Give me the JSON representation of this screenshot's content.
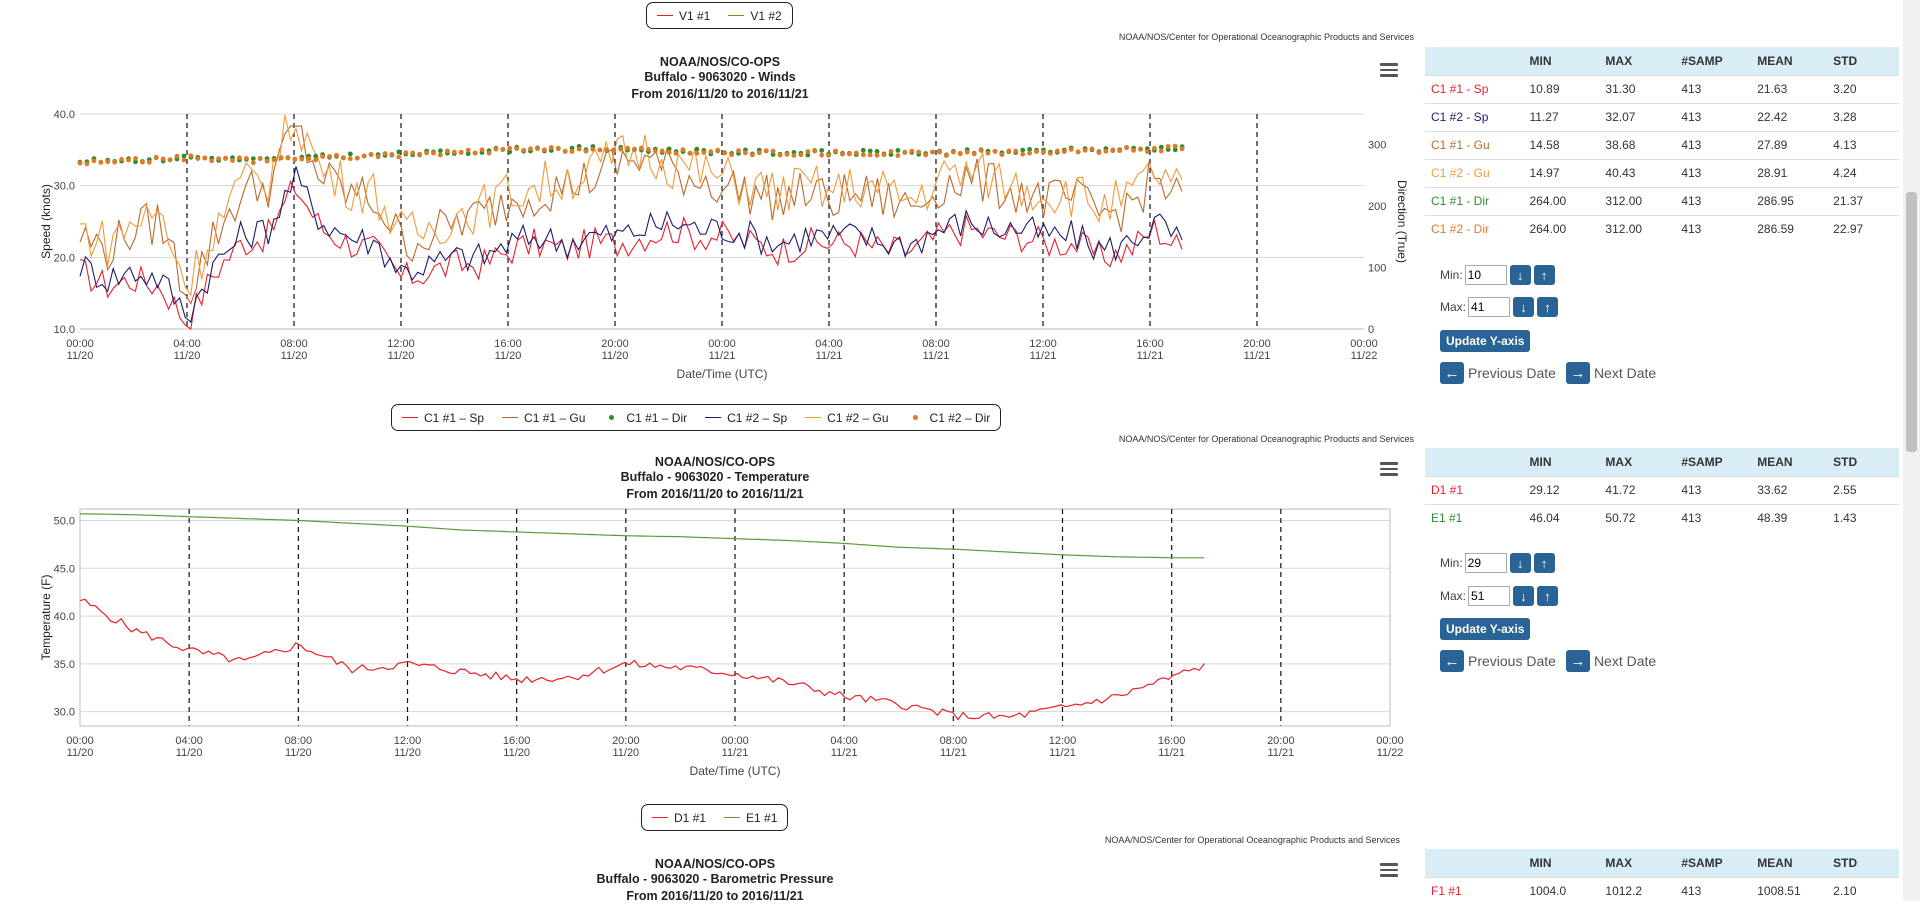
{
  "colors": {
    "red": "#e8202c",
    "navy": "#1f1b6b",
    "brown": "#b86a2d",
    "orange": "#f29a3b",
    "green": "#2e8b2e",
    "olive": "#5f9a3a",
    "dir_orange": "#e07b25",
    "btn": "#2a6496"
  },
  "top_legend": {
    "items": [
      "V1 #1",
      "V1 #2"
    ]
  },
  "credit": "NOAA/NOS/Center for Operational Oceanographic Products and Services",
  "x_axis": {
    "ticks": [
      {
        "t": "00:00",
        "d": "11/20"
      },
      {
        "t": "04:00",
        "d": "11/20"
      },
      {
        "t": "08:00",
        "d": "11/20"
      },
      {
        "t": "12:00",
        "d": "11/20"
      },
      {
        "t": "16:00",
        "d": "11/20"
      },
      {
        "t": "20:00",
        "d": "11/20"
      },
      {
        "t": "00:00",
        "d": "11/21"
      },
      {
        "t": "04:00",
        "d": "11/21"
      },
      {
        "t": "08:00",
        "d": "11/21"
      },
      {
        "t": "12:00",
        "d": "11/21"
      },
      {
        "t": "16:00",
        "d": "11/21"
      },
      {
        "t": "20:00",
        "d": "11/21"
      },
      {
        "t": "00:00",
        "d": "11/22"
      }
    ],
    "label": "Date/Time (UTC)"
  },
  "winds": {
    "title1": "NOAA/NOS/CO-OPS",
    "title2": "Buffalo - 9063020 - Winds",
    "title3": "From 2016/11/20 to 2016/11/21",
    "ylabel": "Speed (knots)",
    "y2label": "Direction (True)",
    "yticks": [
      "10.0",
      "20.0",
      "30.0",
      "40.0"
    ],
    "y2ticks": [
      "0",
      "100",
      "200",
      "300"
    ],
    "legend": [
      {
        "label": "C1 #1 – Sp",
        "sym": "line",
        "color": "#e8202c"
      },
      {
        "label": "C1 #1 – Gu",
        "sym": "line",
        "color": "#b86a2d"
      },
      {
        "label": "C1 #1 – Dir",
        "sym": "dot",
        "color": "#2e8b2e"
      },
      {
        "label": "C1 #2 – Sp",
        "sym": "line",
        "color": "#1f1b6b"
      },
      {
        "label": "C1 #2 – Gu",
        "sym": "line",
        "color": "#f29a3b"
      },
      {
        "label": "C1 #2 – Dir",
        "sym": "dot",
        "color": "#e07b25"
      }
    ],
    "stats": {
      "headers": [
        "",
        "MIN",
        "MAX",
        "#SAMP",
        "MEAN",
        "STD"
      ],
      "rows": [
        {
          "name": "C1 #1 - Sp",
          "color": "#e8202c",
          "vals": [
            "10.89",
            "31.30",
            "413",
            "21.63",
            "3.20"
          ]
        },
        {
          "name": "C1 #2 - Sp",
          "color": "#1f1b6b",
          "vals": [
            "11.27",
            "32.07",
            "413",
            "22.42",
            "3.28"
          ]
        },
        {
          "name": "C1 #1 - Gu",
          "color": "#b86a2d",
          "vals": [
            "14.58",
            "38.68",
            "413",
            "27.89",
            "4.13"
          ]
        },
        {
          "name": "C1 #2 - Gu",
          "color": "#f29a3b",
          "vals": [
            "14.97",
            "40.43",
            "413",
            "28.91",
            "4.24"
          ]
        },
        {
          "name": "C1 #1 - Dir",
          "color": "#2e8b2e",
          "vals": [
            "264.00",
            "312.00",
            "413",
            "286.95",
            "21.37"
          ]
        },
        {
          "name": "C1 #2 - Dir",
          "color": "#e07b25",
          "vals": [
            "264.00",
            "312.00",
            "413",
            "286.59",
            "22.97"
          ]
        }
      ]
    },
    "min_label": "Min:",
    "min_value": "10",
    "max_label": "Max:",
    "max_value": "41"
  },
  "temp": {
    "title1": "NOAA/NOS/CO-OPS",
    "title2": "Buffalo - 9063020 - Temperature",
    "title3": "From 2016/11/20 to 2016/11/21",
    "ylabel": "Temperature (F)",
    "yticks": [
      "30.0",
      "35.0",
      "40.0",
      "45.0",
      "50.0"
    ],
    "legend": [
      {
        "label": "D1 #1",
        "sym": "line",
        "color": "#e8202c"
      },
      {
        "label": "E1 #1",
        "sym": "line",
        "color": "#5f9a3a"
      }
    ],
    "stats": {
      "headers": [
        "",
        "MIN",
        "MAX",
        "#SAMP",
        "MEAN",
        "STD"
      ],
      "rows": [
        {
          "name": "D1 #1",
          "color": "#e8202c",
          "vals": [
            "29.12",
            "41.72",
            "413",
            "33.62",
            "2.55"
          ]
        },
        {
          "name": "E1 #1",
          "color": "#2e8b2e",
          "vals": [
            "46.04",
            "50.72",
            "413",
            "48.39",
            "1.43"
          ]
        }
      ]
    },
    "min_label": "Min:",
    "min_value": "29",
    "max_label": "Max:",
    "max_value": "51"
  },
  "pressure": {
    "title1": "NOAA/NOS/CO-OPS",
    "title2": "Buffalo - 9063020 - Barometric Pressure",
    "title3": "From 2016/11/20 to 2016/11/21",
    "stats": {
      "headers": [
        "",
        "MIN",
        "MAX",
        "#SAMP",
        "MEAN",
        "STD"
      ],
      "rows": [
        {
          "name": "F1 #1",
          "color": "#e8202c",
          "vals": [
            "1004.0",
            "1012.2",
            "413",
            "1008.51",
            "2.10"
          ]
        }
      ]
    }
  },
  "update_label": "Update Y-axis",
  "prev_label": "Previous Date",
  "next_label": "Next Date",
  "chart_data": [
    {
      "type": "line",
      "title": "Buffalo - 9063020 - Winds",
      "xlabel": "Date/Time (UTC)",
      "ylabel": "Speed (knots)",
      "y2label": "Direction (True)",
      "x_range": [
        "2016-11-20 00:00",
        "2016-11-22 00:00"
      ],
      "ylim": [
        10,
        40
      ],
      "y2lim": [
        0,
        350
      ],
      "x_hours": [
        0,
        1,
        2,
        3,
        4,
        5,
        6,
        7,
        8,
        9,
        10,
        11,
        12,
        13,
        14,
        15,
        16,
        17,
        18,
        19,
        20,
        21,
        22,
        23,
        24,
        25,
        26,
        27,
        28,
        29,
        30,
        31,
        32,
        33,
        34,
        35,
        36,
        37,
        38,
        39,
        40,
        41
      ],
      "series": [
        {
          "name": "C1 #1 – Sp",
          "axis": "y",
          "values": [
            18,
            16,
            17,
            16,
            11,
            18,
            22,
            23,
            30,
            24,
            22,
            21,
            17,
            18,
            19,
            19,
            21,
            22,
            21,
            22,
            22,
            23,
            24,
            23,
            23,
            22,
            21,
            22,
            22,
            22,
            21,
            21,
            23,
            24,
            23,
            23,
            22,
            22,
            20,
            21,
            24,
            21
          ]
        },
        {
          "name": "C1 #2 – Sp",
          "axis": "y",
          "values": [
            19,
            17,
            18,
            17,
            12,
            19,
            23,
            24,
            31,
            25,
            23,
            22,
            18,
            19,
            20,
            20,
            22,
            23,
            22,
            23,
            23,
            24,
            25,
            24,
            24,
            23,
            22,
            23,
            23,
            23,
            22,
            22,
            24,
            25,
            24,
            24,
            23,
            23,
            21,
            22,
            25,
            22
          ]
        },
        {
          "name": "C1 #1 – Gu",
          "axis": "y",
          "values": [
            23,
            21,
            24,
            25,
            15,
            23,
            29,
            30,
            38,
            31,
            29,
            28,
            22,
            23,
            25,
            26,
            28,
            29,
            30,
            31,
            33,
            34,
            32,
            31,
            30,
            29,
            28,
            29,
            28,
            29,
            28,
            27,
            30,
            31,
            30,
            29,
            28,
            28,
            26,
            27,
            31,
            28
          ]
        },
        {
          "name": "C1 #2 – Gu",
          "axis": "y",
          "values": [
            24,
            22,
            25,
            26,
            16,
            24,
            30,
            31,
            40,
            32,
            30,
            29,
            23,
            24,
            26,
            27,
            29,
            30,
            31,
            32,
            34,
            35,
            33,
            32,
            31,
            30,
            29,
            30,
            29,
            30,
            29,
            28,
            31,
            32,
            31,
            30,
            29,
            29,
            27,
            28,
            32,
            29
          ]
        },
        {
          "name": "C1 #1 – Dir",
          "axis": "y2",
          "values": [
            272,
            275,
            276,
            276,
            280,
            278,
            276,
            275,
            278,
            280,
            282,
            282,
            285,
            286,
            288,
            290,
            292,
            293,
            293,
            294,
            292,
            292,
            290,
            290,
            288,
            288,
            287,
            287,
            287,
            287,
            287,
            287,
            287,
            288,
            288,
            289,
            290,
            291,
            292,
            293,
            294,
            296
          ]
        },
        {
          "name": "C1 #2 – Dir",
          "axis": "y2",
          "values": [
            270,
            273,
            275,
            275,
            279,
            277,
            275,
            274,
            277,
            279,
            281,
            281,
            284,
            285,
            287,
            289,
            291,
            292,
            292,
            293,
            291,
            291,
            289,
            289,
            287,
            287,
            286,
            286,
            286,
            286,
            286,
            286,
            286,
            287,
            287,
            288,
            289,
            290,
            291,
            292,
            293,
            295
          ]
        }
      ]
    },
    {
      "type": "line",
      "title": "Buffalo - 9063020 - Temperature",
      "xlabel": "Date/Time (UTC)",
      "ylabel": "Temperature (F)",
      "x_range": [
        "2016-11-20 00:00",
        "2016-11-22 00:00"
      ],
      "ylim": [
        28.5,
        51.2
      ],
      "x_hours": [
        0,
        2,
        4,
        6,
        8,
        10,
        12,
        14,
        16,
        18,
        20,
        22,
        24,
        26,
        28,
        30,
        32,
        34,
        36,
        38,
        40,
        41.2
      ],
      "series": [
        {
          "name": "D1 #1",
          "values": [
            41.7,
            38.5,
            36.4,
            35.2,
            37.0,
            34.4,
            35.0,
            34.2,
            33.4,
            33.6,
            35.0,
            34.6,
            34.0,
            33.0,
            31.6,
            30.8,
            29.6,
            29.4,
            30.4,
            31.6,
            33.6,
            34.8
          ]
        },
        {
          "name": "E1 #1",
          "values": [
            50.7,
            50.6,
            50.4,
            50.2,
            50.0,
            49.7,
            49.4,
            49.0,
            48.8,
            48.6,
            48.4,
            48.3,
            48.1,
            47.9,
            47.6,
            47.2,
            47.0,
            46.7,
            46.4,
            46.2,
            46.1,
            46.1
          ]
        }
      ]
    }
  ]
}
